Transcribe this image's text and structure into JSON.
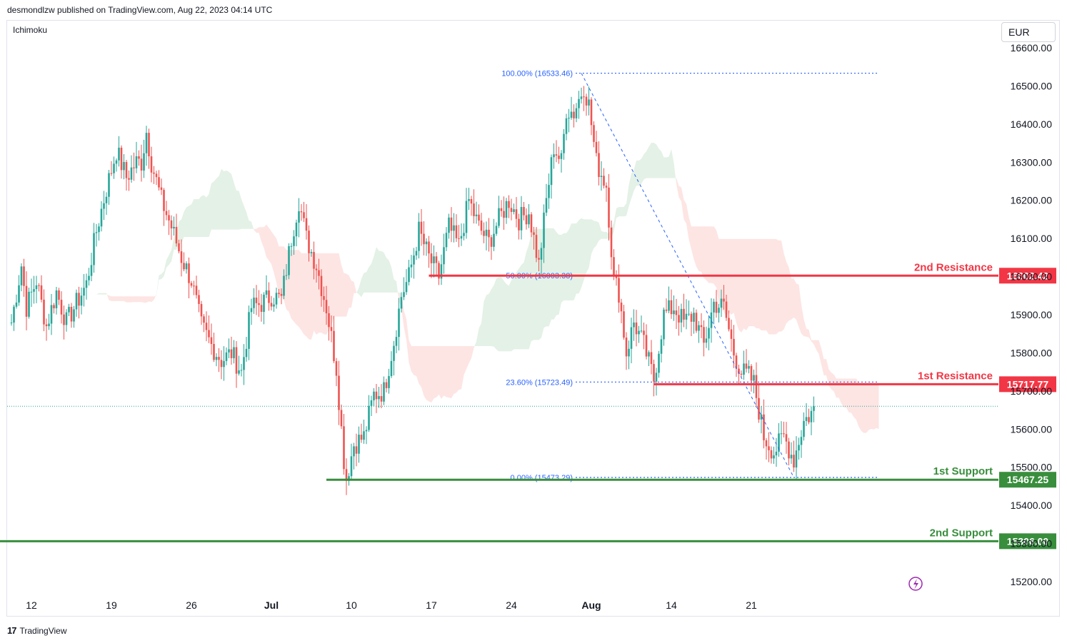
{
  "header": {
    "published": "desmondlzw published on TradingView.com, Aug 22, 2023 04:14 UTC"
  },
  "indicator": "Ichimoku",
  "currency": "EUR",
  "footer": {
    "brand": "TradingView",
    "logo": "17"
  },
  "colors": {
    "up": "#26a69a",
    "down": "#ef5350",
    "cloud_bull": "#e4f1e6",
    "cloud_bear": "#fde5e3",
    "resistance": "#f23645",
    "support": "#388e3c",
    "fib": "#2962ff",
    "last_price": "#26a69a"
  },
  "chart_data": {
    "type": "candlestick",
    "title": "",
    "y_axis": {
      "min": 15100,
      "max": 16640,
      "ticks": [
        "16600.00",
        "16500.00",
        "16400.00",
        "16300.00",
        "16200.00",
        "16100.00",
        "16000.00",
        "15900.00",
        "15800.00",
        "15700.00",
        "15600.00",
        "15500.00",
        "15400.00",
        "15300.00",
        "15200.00"
      ],
      "tick_values": [
        16600,
        16500,
        16400,
        16300,
        16200,
        16100,
        16000,
        15900,
        15800,
        15700,
        15600,
        15500,
        15400,
        15300,
        15200
      ]
    },
    "x_axis": {
      "labels": [
        "12",
        "19",
        "26",
        "Jul",
        "10",
        "17",
        "24",
        "Aug",
        "14",
        "21"
      ],
      "bold": [
        "Jul",
        "Aug"
      ],
      "label_bar_index": [
        8,
        40,
        72,
        104,
        136,
        168,
        200,
        232,
        264,
        296
      ]
    },
    "grid": false,
    "levels": [
      {
        "name": "2nd Resistance",
        "value": 16002.42,
        "tag": "16002.42",
        "kind": "resistance",
        "start_bar": 167
      },
      {
        "name": "1st Resistance",
        "value": 15717.77,
        "tag": "15717.77",
        "kind": "resistance",
        "start_bar": 257
      },
      {
        "name": "1st Support",
        "value": 15467.25,
        "tag": "15467.25",
        "kind": "support",
        "start_bar": 126
      },
      {
        "name": "2nd Support",
        "value": 15306.0,
        "tag": "15306.00",
        "kind": "support",
        "start_bar": -8
      }
    ],
    "fibonacci": [
      {
        "label": "100.00% (16533.46)",
        "value": 16533.46
      },
      {
        "label": "50.00% (16003.38)",
        "value": 16003.38
      },
      {
        "label": "23.60% (15723.49)",
        "value": 15723.49
      },
      {
        "label": "0.00% (15473.29)",
        "value": 15473.29
      }
    ],
    "fib_range": {
      "from": {
        "bar": 228,
        "value": 16533.46
      },
      "to": {
        "bar": 313,
        "value": 15473.29
      },
      "line_end_bar": 347
    },
    "last_price": 15660,
    "series": [
      {
        "name": "",
        "close_path": [
          [
            0,
            15880
          ],
          [
            4,
            16030
          ],
          [
            6,
            15920
          ],
          [
            10,
            15990
          ],
          [
            14,
            15870
          ],
          [
            18,
            15960
          ],
          [
            22,
            15880
          ],
          [
            26,
            15930
          ],
          [
            30,
            15980
          ],
          [
            34,
            16120
          ],
          [
            38,
            16230
          ],
          [
            42,
            16330
          ],
          [
            46,
            16260
          ],
          [
            50,
            16300
          ],
          [
            52,
            16300
          ],
          [
            54,
            16380
          ],
          [
            56,
            16300
          ],
          [
            60,
            16200
          ],
          [
            64,
            16130
          ],
          [
            68,
            16050
          ],
          [
            72,
            15990
          ],
          [
            76,
            15870
          ],
          [
            80,
            15820
          ],
          [
            84,
            15780
          ],
          [
            88,
            15800
          ],
          [
            92,
            15750
          ],
          [
            96,
            15920
          ],
          [
            100,
            15930
          ],
          [
            104,
            15950
          ],
          [
            108,
            15940
          ],
          [
            112,
            16100
          ],
          [
            115,
            16200
          ],
          [
            118,
            16100
          ],
          [
            122,
            16030
          ],
          [
            126,
            15920
          ],
          [
            130,
            15760
          ],
          [
            133,
            15520
          ],
          [
            134,
            15470
          ],
          [
            137,
            15560
          ],
          [
            141,
            15580
          ],
          [
            145,
            15690
          ],
          [
            149,
            15700
          ],
          [
            153,
            15830
          ],
          [
            156,
            15950
          ],
          [
            159,
            16000
          ],
          [
            163,
            16120
          ],
          [
            167,
            16050
          ],
          [
            171,
            16000
          ],
          [
            175,
            16130
          ],
          [
            179,
            16080
          ],
          [
            183,
            16200
          ],
          [
            187,
            16130
          ],
          [
            191,
            16090
          ],
          [
            195,
            16150
          ],
          [
            199,
            16200
          ],
          [
            203,
            16150
          ],
          [
            207,
            16170
          ],
          [
            211,
            16030
          ],
          [
            214,
            16200
          ],
          [
            217,
            16340
          ],
          [
            220,
            16300
          ],
          [
            222,
            16440
          ],
          [
            225,
            16430
          ],
          [
            229,
            16500
          ],
          [
            231,
            16450
          ],
          [
            234,
            16300
          ],
          [
            238,
            16240
          ],
          [
            241,
            15990
          ],
          [
            243,
            15960
          ],
          [
            246,
            15800
          ],
          [
            249,
            15880
          ],
          [
            253,
            15820
          ],
          [
            257,
            15730
          ],
          [
            261,
            15900
          ],
          [
            265,
            15920
          ],
          [
            269,
            15880
          ],
          [
            273,
            15900
          ],
          [
            277,
            15820
          ],
          [
            281,
            15930
          ],
          [
            285,
            15920
          ],
          [
            289,
            15800
          ],
          [
            292,
            15750
          ],
          [
            295,
            15740
          ],
          [
            297,
            15720
          ],
          [
            301,
            15580
          ],
          [
            305,
            15540
          ],
          [
            309,
            15580
          ],
          [
            313,
            15520
          ],
          [
            317,
            15620
          ],
          [
            321,
            15650
          ]
        ]
      }
    ],
    "candle_count": 322
  }
}
